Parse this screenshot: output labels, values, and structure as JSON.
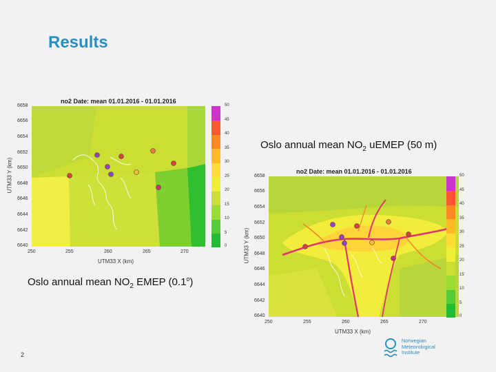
{
  "slide": {
    "title": "Results",
    "page_number": "2"
  },
  "captions": {
    "top_right": {
      "prefix": "Oslo annual mean NO",
      "sub": "2",
      "suffix": " uEMEP (50 m)"
    },
    "bottom_left": {
      "prefix": "Oslo annual mean NO",
      "sub": "2",
      "mid": " EMEP (0.1",
      "sup": "o",
      "suffix": ")"
    }
  },
  "plot_left": {
    "title": "no2  Date: mean 01.01.2016 - 01.01.2016",
    "ylabel": "UTM33 Y (km)",
    "xlabel": "UTM33 X (km)",
    "y_ticks": [
      "6658",
      "6656",
      "6654",
      "6652",
      "6650",
      "6648",
      "6646",
      "6644",
      "6642",
      "6640"
    ],
    "x_ticks": [
      "250",
      "255",
      "260",
      "265",
      "270"
    ],
    "colorbar_ticks": [
      "50",
      "45",
      "40",
      "35",
      "30",
      "25",
      "20",
      "15",
      "10",
      "5",
      "0"
    ]
  },
  "plot_right": {
    "title": "no2  Date: mean 01.01.2016 - 01.01.2016",
    "ylabel": "UTM33 Y (km)",
    "xlabel": "UTM33 X (km)",
    "y_ticks": [
      "6658",
      "6656",
      "6654",
      "6652",
      "6650",
      "6648",
      "6646",
      "6644",
      "6642",
      "6640"
    ],
    "x_ticks": [
      "250",
      "255",
      "260",
      "265",
      "270"
    ],
    "colorbar_ticks": [
      "50",
      "45",
      "40",
      "35",
      "30",
      "25",
      "20",
      "15",
      "10",
      "5",
      "0"
    ]
  },
  "colors": {
    "title": "#2a8fc0",
    "colorbar": [
      "#22bb33",
      "#55cc33",
      "#99dd33",
      "#ccdd33",
      "#eeee33",
      "#ffdd33",
      "#ffbb22",
      "#ff8822",
      "#ff5533",
      "#ee2277",
      "#cc33cc"
    ]
  },
  "logo": {
    "line1": "Norwegian",
    "line2": "Meteorological",
    "line3": "Institute"
  }
}
